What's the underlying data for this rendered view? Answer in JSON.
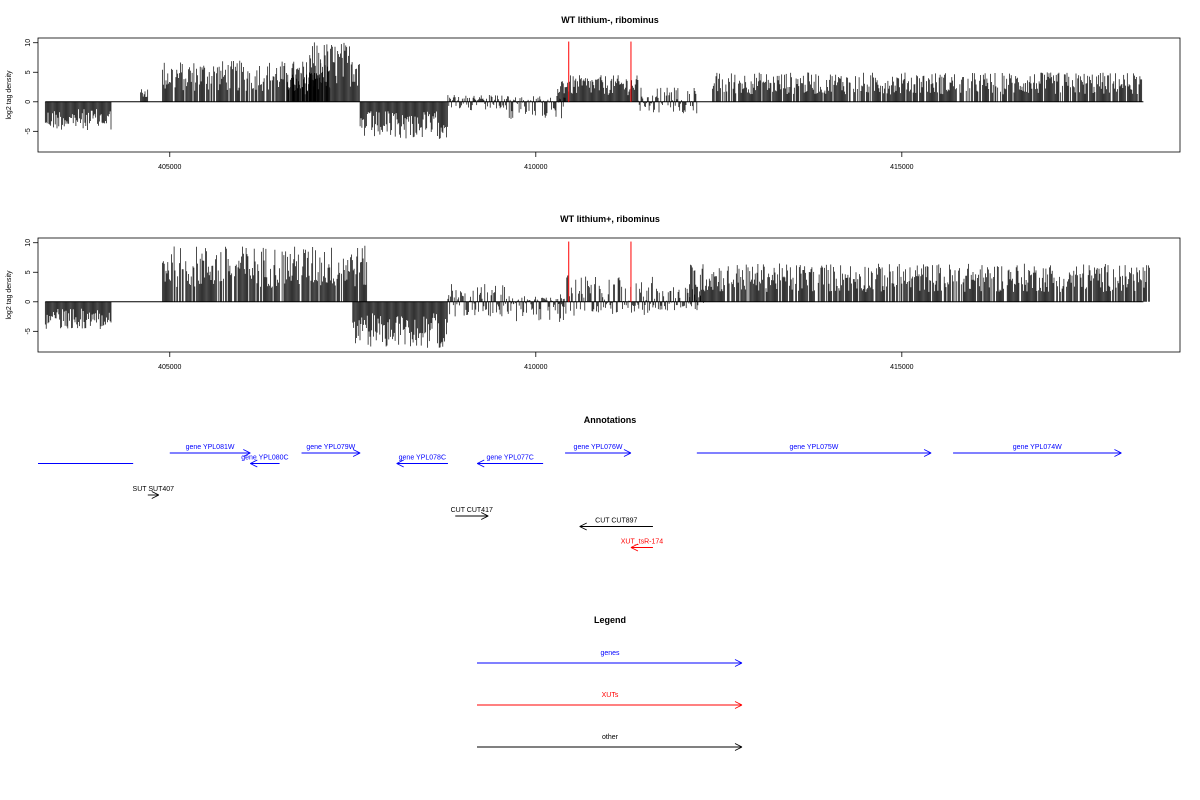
{
  "colors": {
    "gene": "#0000ff",
    "xut": "#ff0000",
    "other": "#000000",
    "marker": "#ff0000"
  },
  "chart_data": [
    {
      "type": "bar",
      "title": "WT lithium-, ribominus",
      "ylabel": "log2 tag density",
      "xlim": [
        403200,
        418800
      ],
      "ylim": [
        -8.5,
        10.8
      ],
      "x_ticks": [
        405000,
        410000,
        415000
      ],
      "y_ticks": [
        -5,
        0,
        5,
        10
      ],
      "baseline_range": [
        403300,
        418300
      ],
      "markers": [
        410450,
        411300
      ],
      "segments": [
        [
          403300,
          404200,
          -4.8,
          0
        ],
        [
          404600,
          404700,
          0,
          2.5
        ],
        [
          404900,
          407200,
          0,
          7.0
        ],
        [
          406600,
          407000,
          0,
          5.0
        ],
        [
          406900,
          407600,
          0,
          10.2
        ],
        [
          407600,
          408800,
          -6.3,
          0
        ],
        [
          408800,
          409600,
          -1.5,
          1.2
        ],
        [
          409600,
          410400,
          -3.0,
          1.0
        ],
        [
          410300,
          411400,
          0,
          4.5
        ],
        [
          411400,
          412200,
          -2.0,
          2.5
        ],
        [
          412400,
          418300,
          0,
          5.0
        ]
      ]
    },
    {
      "type": "bar",
      "title": "WT lithium+, ribominus",
      "ylabel": "log2 tag density",
      "xlim": [
        403200,
        418800
      ],
      "ylim": [
        -8.5,
        10.8
      ],
      "x_ticks": [
        405000,
        410000,
        415000
      ],
      "y_ticks": [
        -5,
        0,
        5,
        10
      ],
      "baseline_range": [
        403300,
        418300
      ],
      "markers": [
        410450,
        411300
      ],
      "segments": [
        [
          403300,
          404200,
          -4.6,
          0
        ],
        [
          404900,
          407700,
          0,
          9.5
        ],
        [
          407500,
          408800,
          -7.8,
          0
        ],
        [
          408800,
          409700,
          -2.5,
          3.0
        ],
        [
          409700,
          410400,
          -3.5,
          1.0
        ],
        [
          410300,
          411600,
          -2.5,
          4.5
        ],
        [
          411600,
          412300,
          -1.5,
          2.5
        ],
        [
          412100,
          418400,
          0,
          6.5
        ]
      ]
    }
  ],
  "annotations": {
    "title": "Annotations",
    "items": [
      {
        "label": "",
        "kind": "gene",
        "start": 403200,
        "end": 404500,
        "strand": "none",
        "row": 1
      },
      {
        "label": "gene YPL081W",
        "kind": "gene",
        "start": 405000,
        "end": 406100,
        "strand": "+",
        "row": 0
      },
      {
        "label": "gene YPL080C",
        "kind": "gene",
        "start": 406100,
        "end": 406500,
        "strand": "-",
        "row": 1
      },
      {
        "label": "gene YPL079W",
        "kind": "gene",
        "start": 406800,
        "end": 407600,
        "strand": "+",
        "row": 0
      },
      {
        "label": "gene YPL078C",
        "kind": "gene",
        "start": 408100,
        "end": 408800,
        "strand": "-",
        "row": 1
      },
      {
        "label": "gene YPL077C",
        "kind": "gene",
        "start": 409200,
        "end": 410100,
        "strand": "-",
        "row": 1
      },
      {
        "label": "gene YPL076W",
        "kind": "gene",
        "start": 410400,
        "end": 411300,
        "strand": "+",
        "row": 0
      },
      {
        "label": "gene YPL075W",
        "kind": "gene",
        "start": 412200,
        "end": 415400,
        "strand": "+",
        "row": 0
      },
      {
        "label": "gene YPL074W",
        "kind": "gene",
        "start": 415700,
        "end": 418000,
        "strand": "+",
        "row": 0
      },
      {
        "label": "SUT SUT407",
        "kind": "other",
        "start": 404700,
        "end": 404850,
        "strand": "+",
        "row": 4
      },
      {
        "label": "CUT CUT417",
        "kind": "other",
        "start": 408900,
        "end": 409350,
        "strand": "+",
        "row": 6
      },
      {
        "label": "CUT CUT897",
        "kind": "other",
        "start": 410600,
        "end": 411600,
        "strand": "-",
        "row": 7
      },
      {
        "label": "XUT_tsR-174",
        "kind": "xut",
        "start": 411300,
        "end": 411600,
        "strand": "-",
        "row": 9
      }
    ]
  },
  "legend": {
    "title": "Legend",
    "items": [
      {
        "label": "genes",
        "kind": "gene"
      },
      {
        "label": "XUTs",
        "kind": "xut"
      },
      {
        "label": "other",
        "kind": "other"
      }
    ]
  }
}
